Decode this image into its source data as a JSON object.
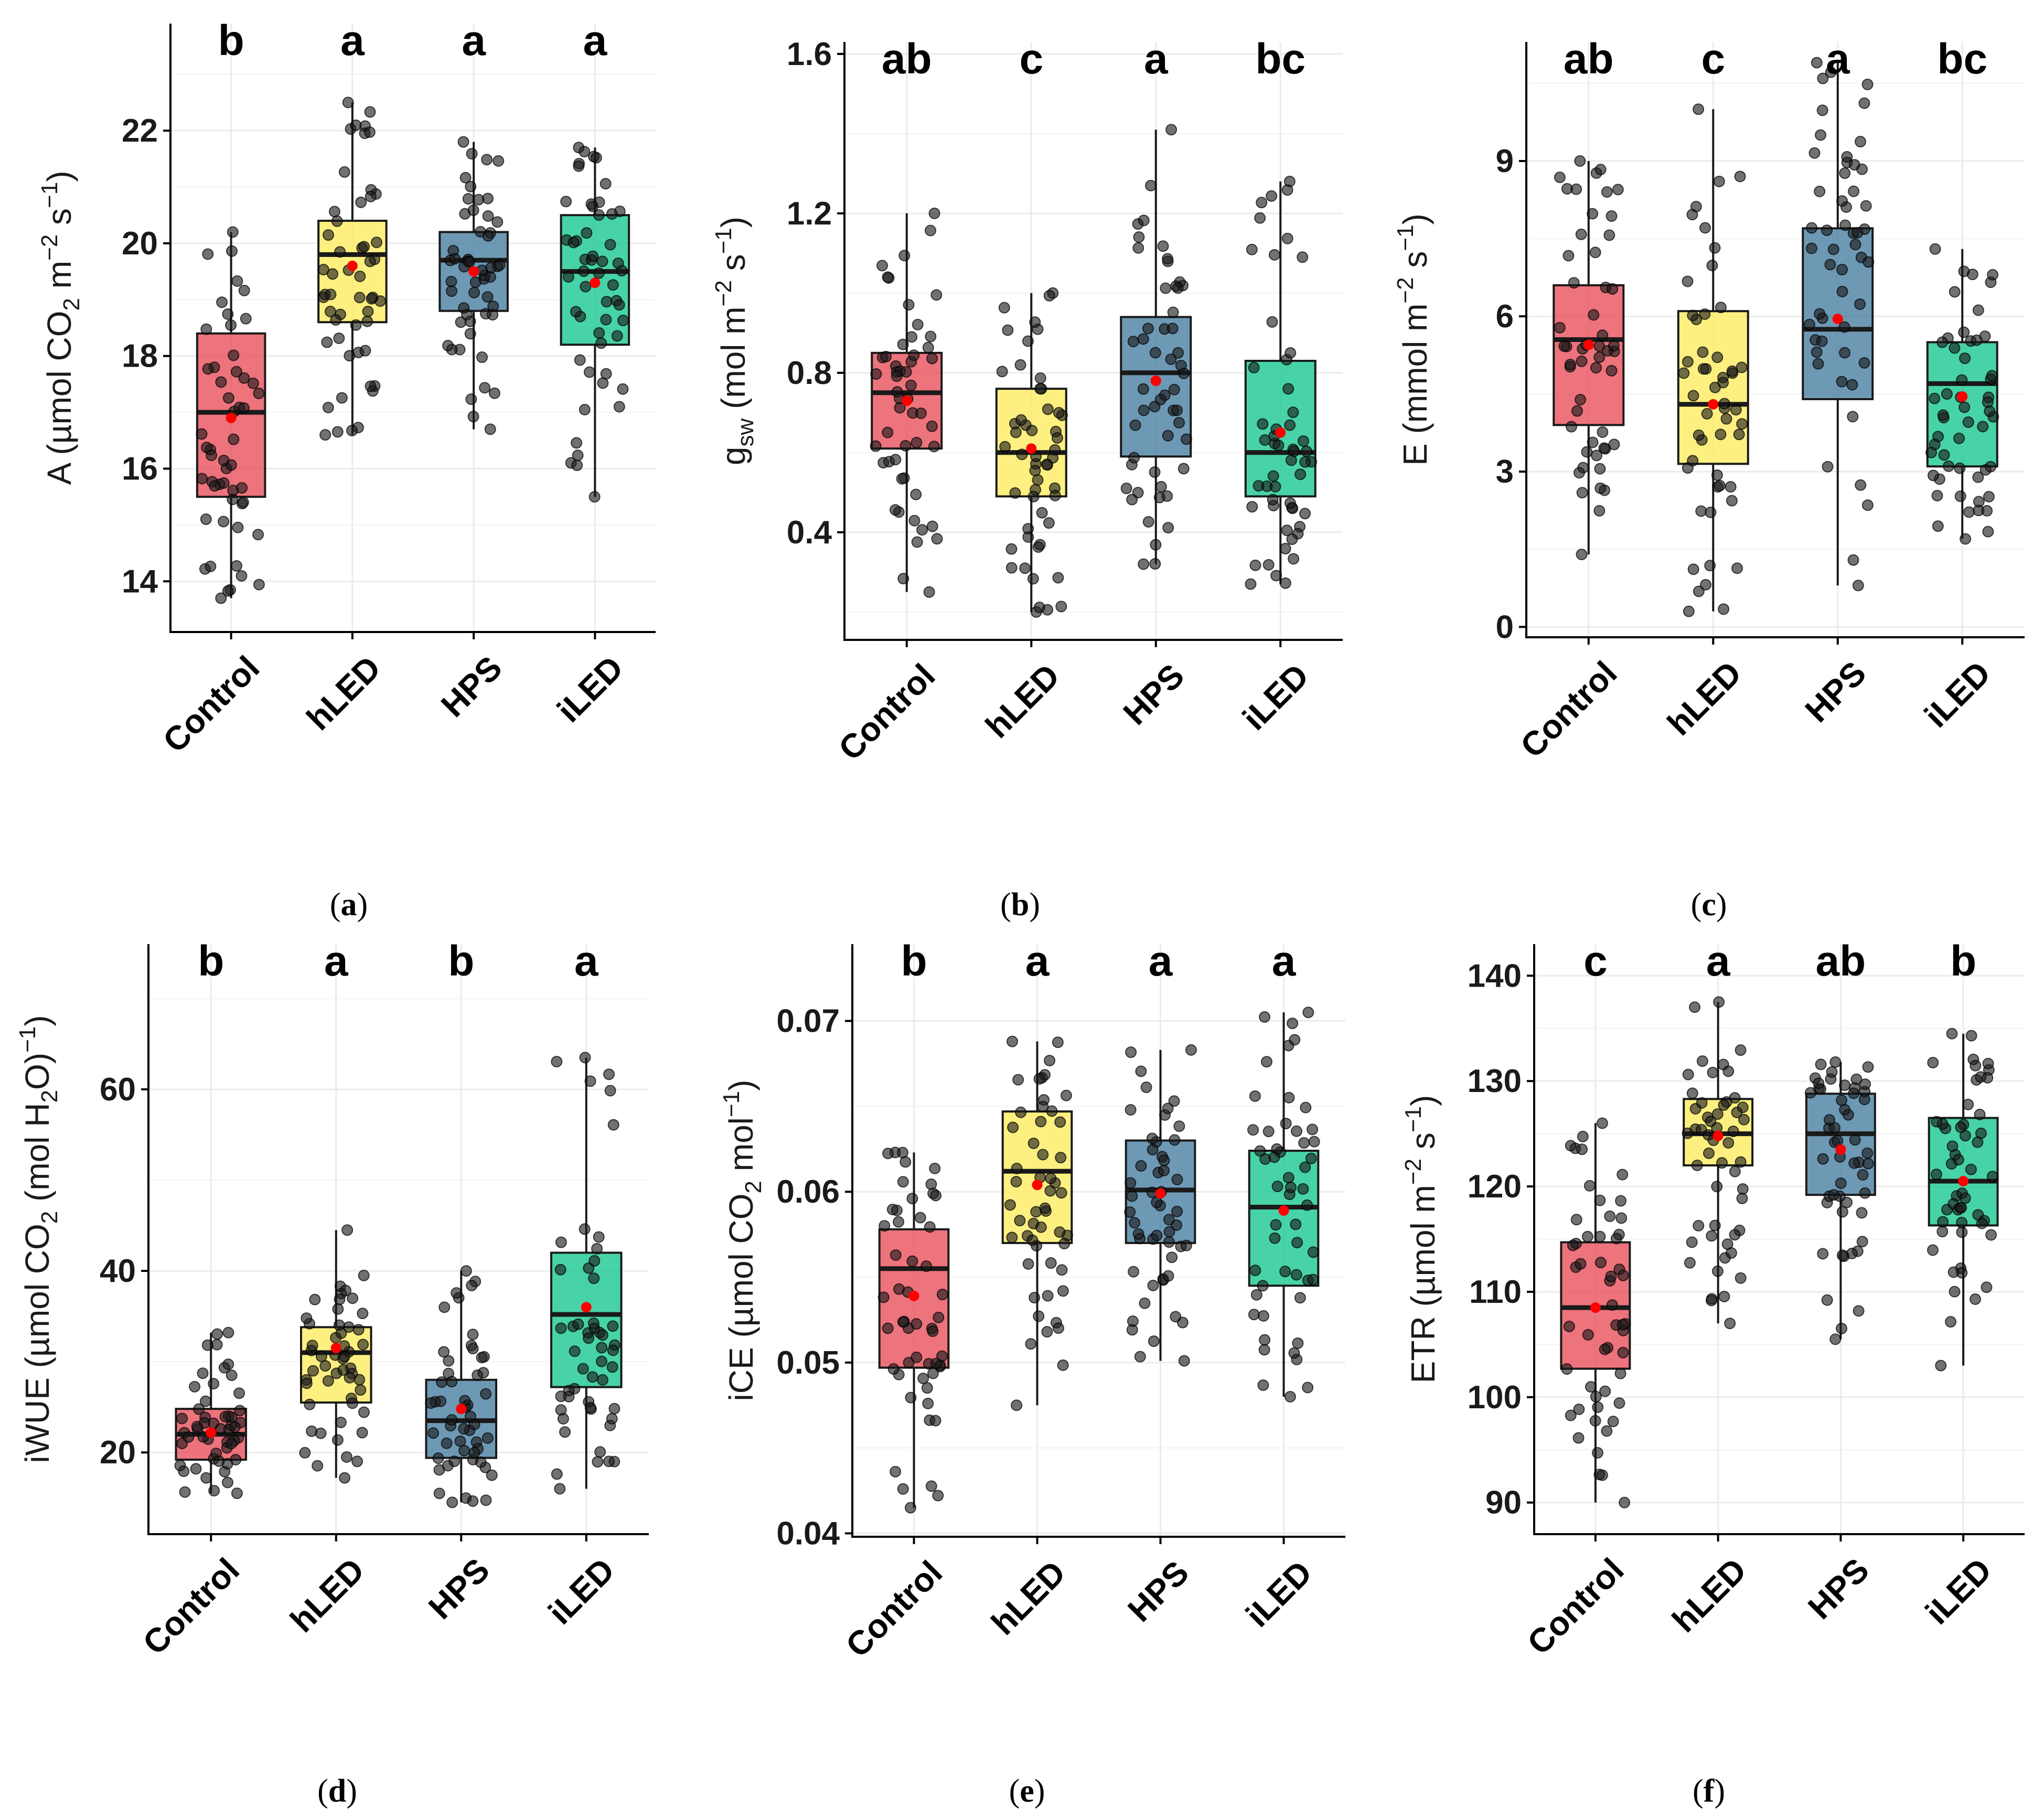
{
  "chart_data": [
    {
      "type": "box",
      "panel": "a",
      "caption_letter": "a",
      "ylabel": {
        "main": "A",
        "unit_open": " (µmol CO",
        "sub1": "2",
        "mid": " m",
        "sup1": "−2",
        "mid2": " s",
        "sup2": "−1",
        "close": ")"
      },
      "categories": [
        "Control",
        "hLED",
        "HPS",
        "iLED"
      ],
      "colors": [
        "#e8505b",
        "#fcec60",
        "#4a7fa2",
        "#19c891"
      ],
      "ylim": [
        13.1,
        23.9
      ],
      "yticks": [
        14,
        16,
        18,
        20,
        22
      ],
      "letters": [
        "b",
        "a",
        "a",
        "a"
      ],
      "boxes": [
        {
          "q1": 15.5,
          "median": 17.0,
          "q3": 18.4,
          "whisker_low": 13.7,
          "whisker_high": 20.2,
          "mean": 16.9
        },
        {
          "q1": 18.6,
          "median": 19.8,
          "q3": 20.4,
          "whisker_low": 16.6,
          "whisker_high": 22.5,
          "mean": 19.6
        },
        {
          "q1": 18.8,
          "median": 19.7,
          "q3": 20.2,
          "whisker_low": 16.7,
          "whisker_high": 21.8,
          "mean": 19.5
        },
        {
          "q1": 18.2,
          "median": 19.5,
          "q3": 20.5,
          "whisker_low": 15.5,
          "whisker_high": 21.7,
          "mean": 19.3
        }
      ]
    },
    {
      "type": "box",
      "panel": "b",
      "caption_letter": "b",
      "ylabel": {
        "main": "g",
        "main_sub": "sw",
        "unit_open": " (mol m",
        "sup1": "−2",
        "mid2": " s",
        "sup2": "−1",
        "close": ")"
      },
      "categories": [
        "Control",
        "hLED",
        "HPS",
        "iLED"
      ],
      "colors": [
        "#e8505b",
        "#fcec60",
        "#4a7fa2",
        "#19c891"
      ],
      "ylim": [
        0.13,
        1.63
      ],
      "yticks": [
        0.4,
        0.8,
        1.2,
        1.6
      ],
      "ytick_labels": [
        "0.4",
        "0.8",
        "1.2",
        "1.6"
      ],
      "letters": [
        "ab",
        "c",
        "a",
        "bc"
      ],
      "boxes": [
        {
          "q1": 0.61,
          "median": 0.75,
          "q3": 0.85,
          "whisker_low": 0.25,
          "whisker_high": 1.2,
          "mean": 0.73
        },
        {
          "q1": 0.49,
          "median": 0.6,
          "q3": 0.76,
          "whisker_low": 0.2,
          "whisker_high": 1.0,
          "mean": 0.61
        },
        {
          "q1": 0.59,
          "median": 0.8,
          "q3": 0.94,
          "whisker_low": 0.32,
          "whisker_high": 1.41,
          "mean": 0.78
        },
        {
          "q1": 0.49,
          "median": 0.6,
          "q3": 0.83,
          "whisker_low": 0.27,
          "whisker_high": 1.28,
          "mean": 0.65
        }
      ]
    },
    {
      "type": "box",
      "panel": "c",
      "caption_letter": "c",
      "ylabel": {
        "main": "E",
        "unit_open": " (mmol m",
        "sup1": "−2",
        "mid2": " s",
        "sup2": "−1",
        "close": ")"
      },
      "categories": [
        "Control",
        "hLED",
        "HPS",
        "iLED"
      ],
      "colors": [
        "#e8505b",
        "#fcec60",
        "#4a7fa2",
        "#19c891"
      ],
      "ylim": [
        -0.2,
        11.3
      ],
      "yticks": [
        0,
        3,
        6,
        9
      ],
      "letters": [
        "ab",
        "c",
        "a",
        "bc"
      ],
      "boxes": [
        {
          "q1": 3.9,
          "median": 5.55,
          "q3": 6.6,
          "whisker_low": 1.4,
          "whisker_high": 9.0,
          "mean": 5.45
        },
        {
          "q1": 3.15,
          "median": 4.3,
          "q3": 6.1,
          "whisker_low": 0.3,
          "whisker_high": 10.0,
          "mean": 4.3
        },
        {
          "q1": 4.4,
          "median": 5.75,
          "q3": 7.7,
          "whisker_low": 0.8,
          "whisker_high": 10.9,
          "mean": 5.95
        },
        {
          "q1": 3.1,
          "median": 4.7,
          "q3": 5.5,
          "whisker_low": 1.7,
          "whisker_high": 7.3,
          "mean": 4.45
        }
      ]
    },
    {
      "type": "box",
      "panel": "d",
      "caption_letter": "d",
      "ylabel": {
        "main": "iWUE",
        "unit_open": " (µmol CO",
        "sub1": "2",
        "mid": " (mol H",
        "sub2": "2",
        "mid2": "O)",
        "sup2": "−1",
        "close": ")"
      },
      "categories": [
        "Control",
        "hLED",
        "HPS",
        "iLED"
      ],
      "colors": [
        "#e8505b",
        "#fcec60",
        "#4a7fa2",
        "#19c891"
      ],
      "ylim": [
        11.0,
        76.0
      ],
      "yticks": [
        20,
        40,
        60
      ],
      "letters": [
        "b",
        "a",
        "b",
        "a"
      ],
      "boxes": [
        {
          "q1": 19.2,
          "median": 22.0,
          "q3": 24.8,
          "whisker_low": 15.5,
          "whisker_high": 33.2,
          "mean": 22.2
        },
        {
          "q1": 25.5,
          "median": 31.0,
          "q3": 33.8,
          "whisker_low": 17.2,
          "whisker_high": 44.5,
          "mean": 31.5
        },
        {
          "q1": 19.4,
          "median": 23.5,
          "q3": 28.0,
          "whisker_low": 14.5,
          "whisker_high": 40.0,
          "mean": 24.8
        },
        {
          "q1": 27.2,
          "median": 35.2,
          "q3": 42.0,
          "whisker_low": 16.0,
          "whisker_high": 63.5,
          "mean": 36.0
        }
      ]
    },
    {
      "type": "box",
      "panel": "e",
      "caption_letter": "e",
      "ylabel": {
        "main": "iCE",
        "unit_open": " (µmol CO",
        "sub1": "2",
        "mid": " mol",
        "sup2": "−1",
        "close": ")"
      },
      "categories": [
        "Control",
        "hLED",
        "HPS",
        "iLED"
      ],
      "colors": [
        "#e8505b",
        "#fcec60",
        "#4a7fa2",
        "#19c891"
      ],
      "ylim": [
        0.0398,
        0.0745
      ],
      "yticks": [
        0.04,
        0.05,
        0.06,
        0.07
      ],
      "ytick_labels": [
        "0.04",
        "0.05",
        "0.06",
        "0.07"
      ],
      "letters": [
        "b",
        "a",
        "a",
        "a"
      ],
      "boxes": [
        {
          "q1": 0.0497,
          "median": 0.0555,
          "q3": 0.0578,
          "whisker_low": 0.0415,
          "whisker_high": 0.0623,
          "mean": 0.0539
        },
        {
          "q1": 0.057,
          "median": 0.0612,
          "q3": 0.0647,
          "whisker_low": 0.0475,
          "whisker_high": 0.0688,
          "mean": 0.0604
        },
        {
          "q1": 0.057,
          "median": 0.0601,
          "q3": 0.063,
          "whisker_low": 0.0501,
          "whisker_high": 0.0683,
          "mean": 0.0599
        },
        {
          "q1": 0.0545,
          "median": 0.0591,
          "q3": 0.0624,
          "whisker_low": 0.048,
          "whisker_high": 0.0705,
          "mean": 0.0589
        }
      ]
    },
    {
      "type": "box",
      "panel": "f",
      "caption_letter": "f",
      "ylabel": {
        "main": "ETR",
        "unit_open": " (µmol m",
        "sup1": "−2",
        "mid2": " s",
        "sup2": "−1",
        "close": ")"
      },
      "categories": [
        "Control",
        "hLED",
        "HPS",
        "iLED"
      ],
      "colors": [
        "#e8505b",
        "#fcec60",
        "#4a7fa2",
        "#19c891"
      ],
      "ylim": [
        87.0,
        143.0
      ],
      "yticks": [
        90,
        100,
        110,
        120,
        130,
        140
      ],
      "letters": [
        "c",
        "a",
        "ab",
        "b"
      ],
      "boxes": [
        {
          "q1": 102.7,
          "median": 108.5,
          "q3": 114.7,
          "whisker_low": 90.0,
          "whisker_high": 126.0,
          "mean": 108.5
        },
        {
          "q1": 122.0,
          "median": 125.0,
          "q3": 128.3,
          "whisker_low": 107.0,
          "whisker_high": 137.5,
          "mean": 124.8
        },
        {
          "q1": 119.2,
          "median": 125.0,
          "q3": 128.8,
          "whisker_low": 105.5,
          "whisker_high": 131.8,
          "mean": 123.5
        },
        {
          "q1": 116.3,
          "median": 120.5,
          "q3": 126.5,
          "whisker_low": 103.0,
          "whisker_high": 134.5,
          "mean": 120.5
        }
      ]
    }
  ]
}
